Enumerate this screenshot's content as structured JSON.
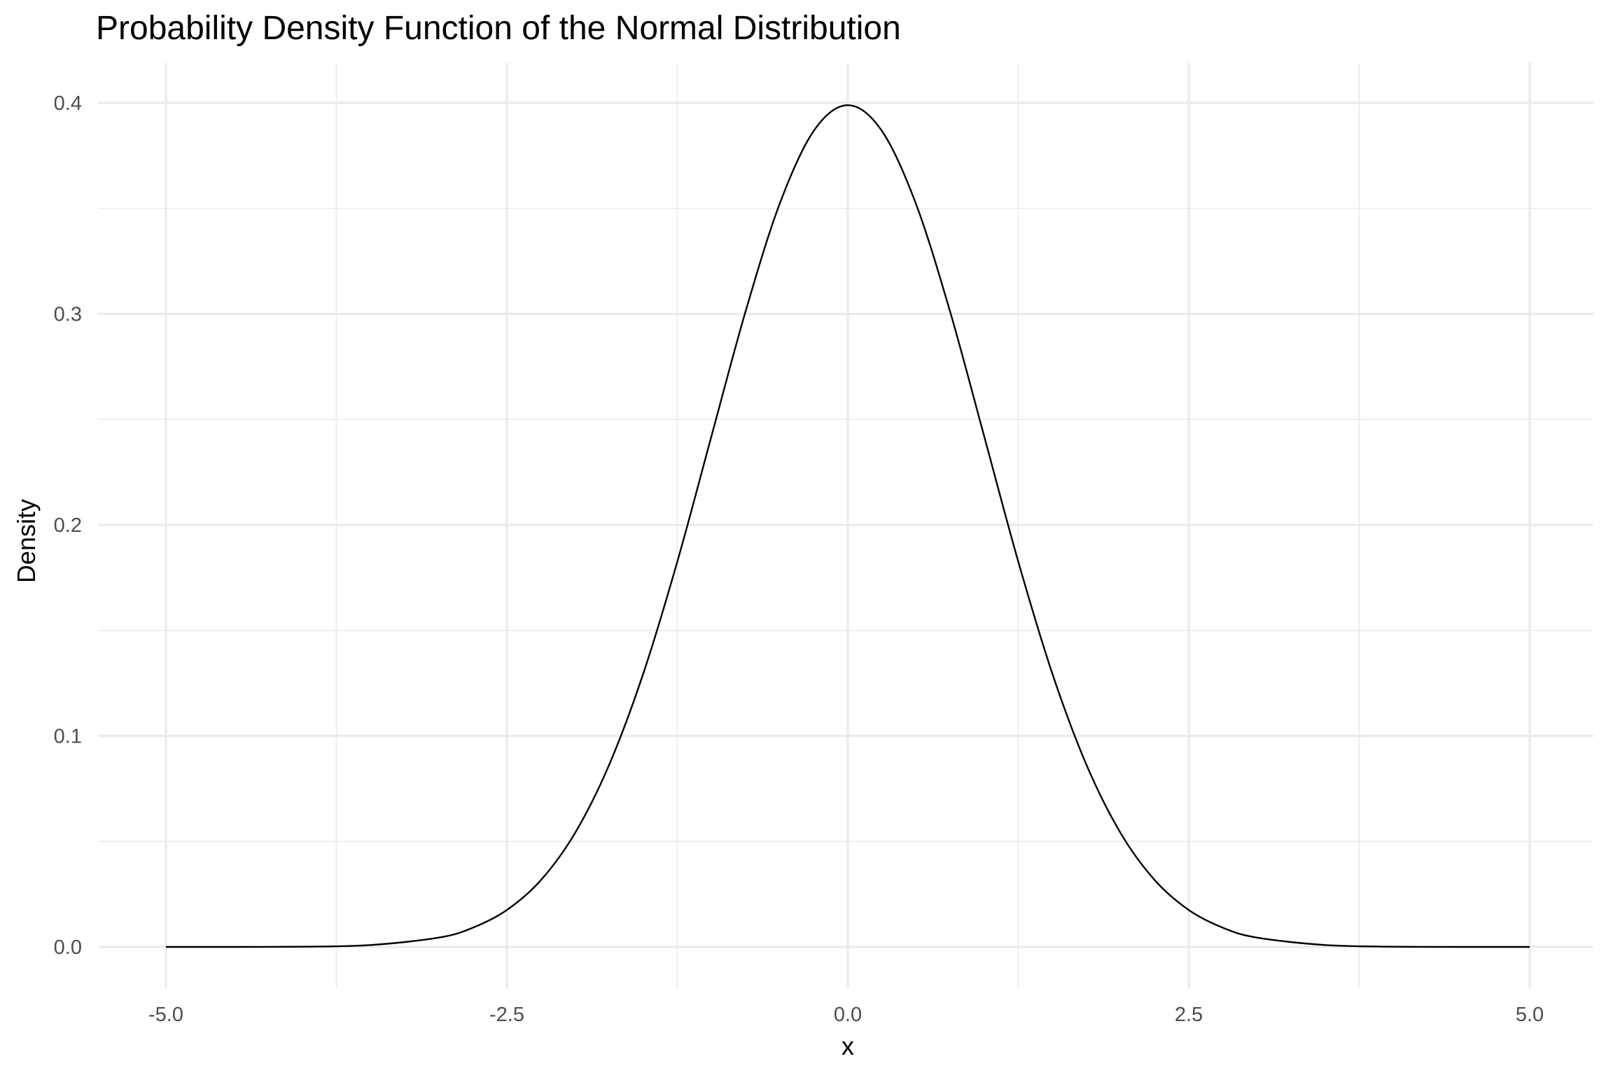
{
  "chart_data": {
    "type": "line",
    "title": "Probability Density Function of the Normal Distribution",
    "xlabel": "x",
    "ylabel": "Density",
    "xlim": [
      -5.0,
      5.0
    ],
    "ylim": [
      0.0,
      0.4
    ],
    "x_ticks": [
      "-5.0",
      "-2.5",
      "0.0",
      "2.5",
      "5.0"
    ],
    "y_ticks": [
      "0.0",
      "0.1",
      "0.2",
      "0.3",
      "0.4"
    ],
    "grid": true,
    "legend": "none",
    "line_color": "#000000",
    "grid_color": "#ebebeb",
    "series": [
      {
        "x": [
          -5.0,
          -4.5,
          -4.0,
          -3.5,
          -3.0,
          -2.75,
          -2.5,
          -2.25,
          -2.0,
          -1.75,
          -1.5,
          -1.25,
          -1.0,
          -0.75,
          -0.5,
          -0.25,
          0.0,
          0.25,
          0.5,
          0.75,
          1.0,
          1.25,
          1.5,
          1.75,
          2.0,
          2.25,
          2.5,
          2.75,
          3.0,
          3.5,
          4.0,
          4.5,
          5.0
        ],
        "y": [
          0.0,
          0.0,
          0.0001,
          0.0009,
          0.0044,
          0.0091,
          0.0175,
          0.0317,
          0.054,
          0.0863,
          0.1295,
          0.1826,
          0.242,
          0.3011,
          0.3521,
          0.3867,
          0.3989,
          0.3867,
          0.3521,
          0.3011,
          0.242,
          0.1826,
          0.1295,
          0.0863,
          0.054,
          0.0317,
          0.0175,
          0.0091,
          0.0044,
          0.0009,
          0.0001,
          0.0,
          0.0
        ]
      }
    ]
  }
}
